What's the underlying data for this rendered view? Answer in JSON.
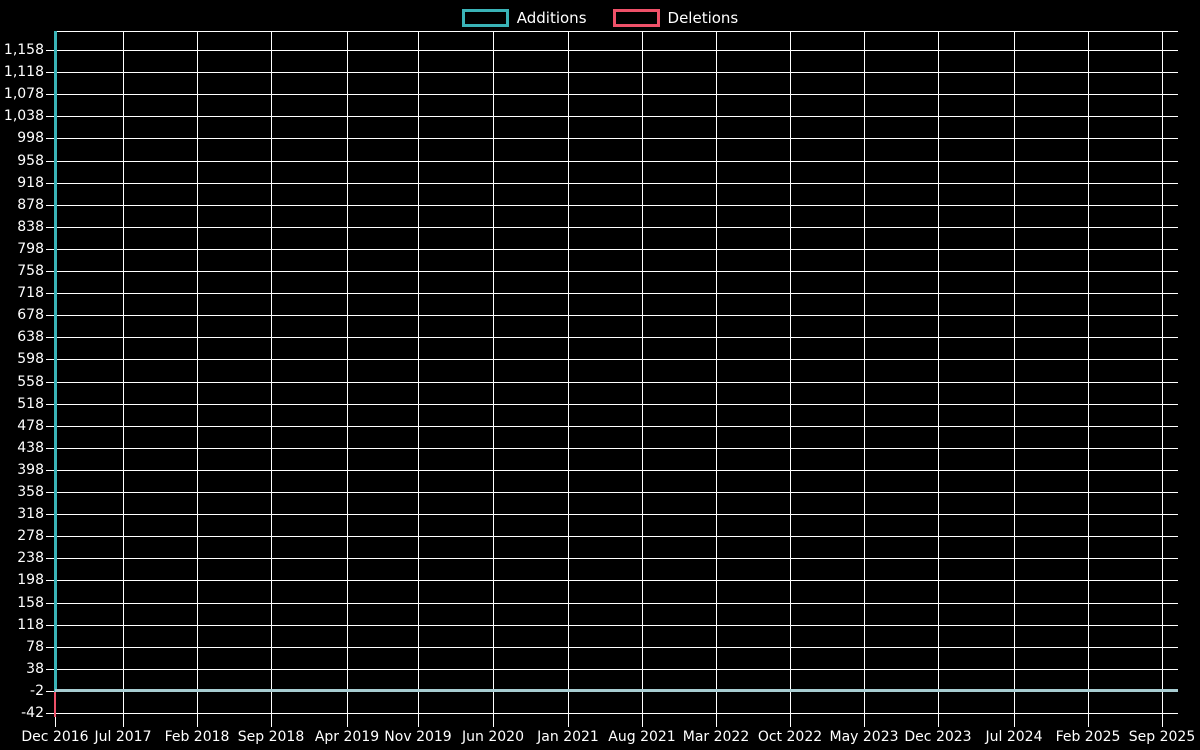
{
  "legend": {
    "items": [
      {
        "label": "Additions",
        "color": "#3ab3b7"
      },
      {
        "label": "Deletions",
        "color": "#ef5169"
      }
    ]
  },
  "axes": {
    "y_tick_labels": [
      "1,158",
      "1,118",
      "1,078",
      "1,038",
      "998",
      "958",
      "918",
      "878",
      "838",
      "798",
      "758",
      "718",
      "678",
      "638",
      "598",
      "558",
      "518",
      "478",
      "438",
      "398",
      "358",
      "318",
      "278",
      "238",
      "198",
      "158",
      "118",
      "78",
      "38",
      "-2",
      "-42"
    ],
    "x_tick_labels": [
      "Dec 2016",
      "Jul 2017",
      "Feb 2018",
      "Sep 2018",
      "Apr 2019",
      "Nov 2019",
      "Jun 2020",
      "Jan 2021",
      "Aug 2021",
      "Mar 2022",
      "Oct 2022",
      "May 2023",
      "Dec 2023",
      "Jul 2024",
      "Feb 2025",
      "Sep 2025"
    ]
  },
  "chart_data": {
    "type": "line",
    "title": "",
    "xlabel": "",
    "ylabel": "",
    "x": [
      "Dec 2016",
      "Jul 2017",
      "Feb 2018",
      "Sep 2018",
      "Apr 2019",
      "Nov 2019",
      "Jun 2020",
      "Jan 2021",
      "Aug 2021",
      "Mar 2022",
      "Oct 2022",
      "May 2023",
      "Dec 2023",
      "Jul 2024",
      "Feb 2025",
      "Sep 2025"
    ],
    "series": [
      {
        "name": "Additions",
        "color": "#3ab3b7",
        "values": [
          1190,
          0,
          0,
          0,
          0,
          0,
          0,
          0,
          0,
          0,
          0,
          0,
          0,
          0,
          0,
          0
        ]
      },
      {
        "name": "Deletions",
        "color": "#ef5169",
        "values": [
          -50,
          0,
          0,
          0,
          0,
          0,
          0,
          0,
          0,
          0,
          0,
          0,
          0,
          0,
          0,
          0
        ]
      }
    ],
    "ylim": [
      -50,
      1192
    ],
    "y_tick_min": -42,
    "y_tick_max": 1158,
    "y_tick_step": 40,
    "grid": true,
    "legend_position": "top-center",
    "background": "#000000",
    "grid_color": "#ffffff",
    "text_color": "#ffffff"
  }
}
